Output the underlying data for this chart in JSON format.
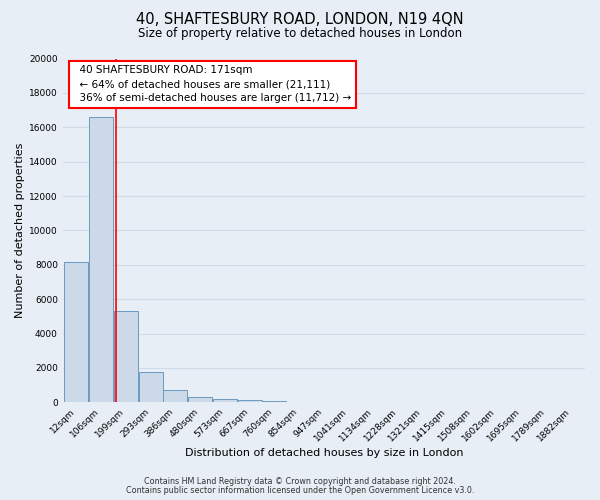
{
  "title": "40, SHAFTESBURY ROAD, LONDON, N19 4QN",
  "subtitle": "Size of property relative to detached houses in London",
  "xlabel": "Distribution of detached houses by size in London",
  "ylabel": "Number of detached properties",
  "bar_values": [
    8150,
    16600,
    5300,
    1750,
    700,
    300,
    200,
    150,
    100
  ],
  "all_labels": [
    "12sqm",
    "106sqm",
    "199sqm",
    "293sqm",
    "386sqm",
    "480sqm",
    "573sqm",
    "667sqm",
    "760sqm",
    "854sqm",
    "947sqm",
    "1041sqm",
    "1134sqm",
    "1228sqm",
    "1321sqm",
    "1415sqm",
    "1508sqm",
    "1602sqm",
    "1695sqm",
    "1789sqm",
    "1882sqm"
  ],
  "num_bars": 9,
  "total_ticks": 21,
  "bar_color": "#ccd9e8",
  "bar_edge_color": "#6a9abf",
  "red_line_x": 1.62,
  "property_size": 171,
  "pct_smaller": 64,
  "count_smaller": 21111,
  "pct_larger": 36,
  "count_larger": 11712,
  "ylim": [
    0,
    20000
  ],
  "yticks": [
    0,
    2000,
    4000,
    6000,
    8000,
    10000,
    12000,
    14000,
    16000,
    18000,
    20000
  ],
  "footer1": "Contains HM Land Registry data © Crown copyright and database right 2024.",
  "footer2": "Contains public sector information licensed under the Open Government Licence v3.0.",
  "bg_color": "#e8eef5",
  "grid_color": "#d0dae8",
  "title_fontsize": 10.5,
  "subtitle_fontsize": 8.5,
  "axis_label_fontsize": 8,
  "tick_fontsize": 6.5,
  "annotation_fontsize": 7.5,
  "footer_fontsize": 5.8
}
